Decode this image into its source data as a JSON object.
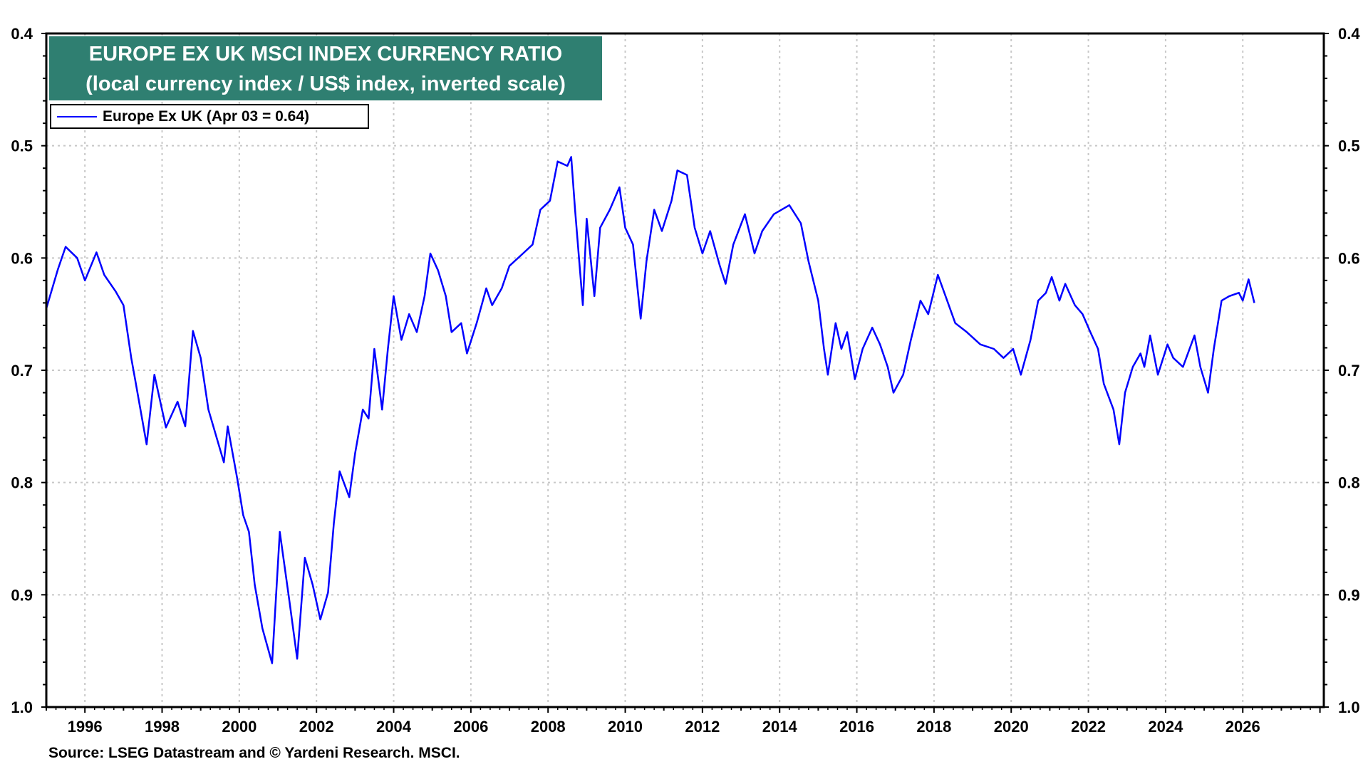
{
  "chart_data": {
    "type": "line",
    "title": "EUROPE EX UK MSCI INDEX CURRENCY RATIO",
    "subtitle": "(local currency index / US$ index, inverted scale)",
    "xlabel": "",
    "ylabel": "",
    "xlim": [
      1995.0,
      2028.1
    ],
    "ylim": [
      0.4,
      1.0
    ],
    "y_inverted": true,
    "y_ticks": [
      "0.4",
      "0.5",
      "0.6",
      "0.7",
      "0.8",
      "0.9",
      "1.0"
    ],
    "x_ticks": [
      "1996",
      "1998",
      "2000",
      "2002",
      "2004",
      "2006",
      "2008",
      "2010",
      "2012",
      "2014",
      "2016",
      "2018",
      "2020",
      "2022",
      "2024",
      "2026"
    ],
    "grid": true,
    "legend_placement": "top-left",
    "series": [
      {
        "name": "Europe Ex UK (Apr 03 = 0.64)",
        "color": "#0000ff",
        "x": [
          1995.0,
          1995.3,
          1995.5,
          1995.8,
          1996.0,
          1996.3,
          1996.5,
          1996.8,
          1997.0,
          1997.2,
          1997.3,
          1997.6,
          1997.8,
          1998.1,
          1998.4,
          1998.6,
          1998.8,
          1999.0,
          1999.2,
          1999.6,
          1999.7,
          1999.95,
          2000.1,
          2000.25,
          2000.4,
          2000.6,
          2000.85,
          2001.05,
          2001.3,
          2001.5,
          2001.7,
          2001.9,
          2002.1,
          2002.3,
          2002.45,
          2002.6,
          2002.85,
          2003.0,
          2003.2,
          2003.35,
          2003.5,
          2003.7,
          2003.85,
          2004.0,
          2004.2,
          2004.4,
          2004.6,
          2004.8,
          2004.95,
          2005.15,
          2005.35,
          2005.5,
          2005.75,
          2005.9,
          2006.15,
          2006.4,
          2006.55,
          2006.8,
          2007.0,
          2007.35,
          2007.6,
          2007.8,
          2008.05,
          2008.25,
          2008.5,
          2008.6,
          2008.7,
          2008.9,
          2009.0,
          2009.2,
          2009.35,
          2009.6,
          2009.85,
          2010.0,
          2010.2,
          2010.4,
          2010.55,
          2010.75,
          2010.95,
          2011.2,
          2011.35,
          2011.6,
          2011.8,
          2012.0,
          2012.2,
          2012.45,
          2012.6,
          2012.8,
          2013.1,
          2013.35,
          2013.55,
          2013.85,
          2014.25,
          2014.55,
          2014.75,
          2015.0,
          2015.15,
          2015.25,
          2015.45,
          2015.6,
          2015.75,
          2015.95,
          2016.15,
          2016.4,
          2016.6,
          2016.8,
          2016.95,
          2017.2,
          2017.4,
          2017.65,
          2017.85,
          2018.1,
          2018.3,
          2018.55,
          2018.85,
          2019.2,
          2019.55,
          2019.8,
          2020.05,
          2020.25,
          2020.5,
          2020.7,
          2020.9,
          2021.05,
          2021.25,
          2021.4,
          2021.65,
          2021.85,
          2022.05,
          2022.25,
          2022.4,
          2022.65,
          2022.8,
          2022.95,
          2023.15,
          2023.35,
          2023.45,
          2023.6,
          2023.8,
          2024.05,
          2024.2,
          2024.45,
          2024.75,
          2024.9,
          2025.1,
          2025.25,
          2025.45,
          2025.65,
          2025.9,
          2026.0,
          2026.15,
          2026.3
        ],
        "y": [
          0.645,
          0.61,
          0.59,
          0.6,
          0.62,
          0.595,
          0.615,
          0.63,
          0.642,
          0.689,
          0.708,
          0.766,
          0.704,
          0.751,
          0.728,
          0.75,
          0.665,
          0.689,
          0.735,
          0.782,
          0.75,
          0.797,
          0.829,
          0.844,
          0.891,
          0.93,
          0.961,
          0.844,
          0.906,
          0.957,
          0.867,
          0.891,
          0.922,
          0.898,
          0.836,
          0.79,
          0.813,
          0.774,
          0.735,
          0.743,
          0.681,
          0.735,
          0.681,
          0.634,
          0.673,
          0.65,
          0.666,
          0.634,
          0.596,
          0.611,
          0.634,
          0.666,
          0.658,
          0.685,
          0.658,
          0.627,
          0.642,
          0.627,
          0.607,
          0.596,
          0.588,
          0.557,
          0.549,
          0.514,
          0.518,
          0.51,
          0.557,
          0.642,
          0.565,
          0.634,
          0.573,
          0.557,
          0.537,
          0.573,
          0.588,
          0.654,
          0.603,
          0.557,
          0.576,
          0.549,
          0.522,
          0.526,
          0.573,
          0.596,
          0.576,
          0.607,
          0.623,
          0.588,
          0.561,
          0.596,
          0.576,
          0.561,
          0.553,
          0.569,
          0.603,
          0.638,
          0.681,
          0.704,
          0.658,
          0.681,
          0.666,
          0.708,
          0.681,
          0.662,
          0.677,
          0.697,
          0.72,
          0.704,
          0.673,
          0.638,
          0.65,
          0.615,
          0.634,
          0.658,
          0.666,
          0.677,
          0.681,
          0.689,
          0.681,
          0.704,
          0.673,
          0.638,
          0.631,
          0.617,
          0.638,
          0.623,
          0.642,
          0.65,
          0.666,
          0.681,
          0.712,
          0.735,
          0.766,
          0.72,
          0.697,
          0.685,
          0.697,
          0.669,
          0.704,
          0.677,
          0.689,
          0.697,
          0.669,
          0.697,
          0.72,
          0.681,
          0.638,
          0.634,
          0.631,
          0.638,
          0.619,
          0.64
        ]
      }
    ],
    "source": "Source: LSEG Datastream and © Yardeni Research. MSCI."
  }
}
